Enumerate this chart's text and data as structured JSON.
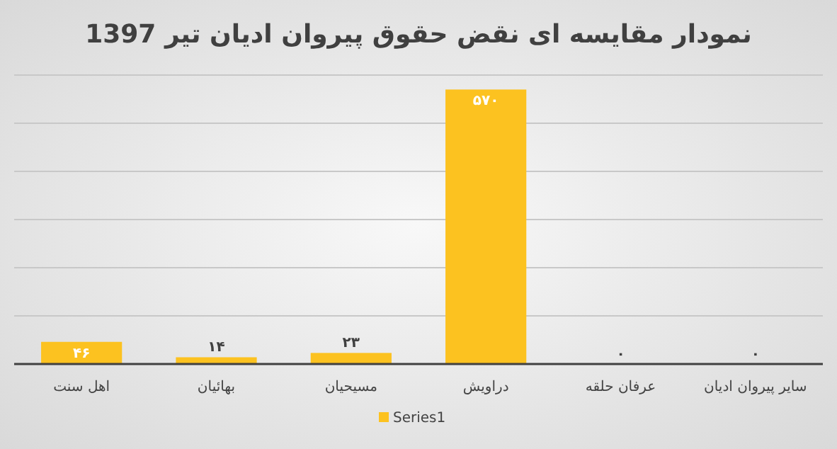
{
  "chart_data": {
    "type": "bar",
    "title": "نمودار مقایسه ای نقض حقوق پیروان ادیان تیر 1397",
    "categories": [
      "اهل سنت",
      "بهائیان",
      "مسیحیان",
      "دراویش",
      "عرفان حلقه",
      "سایر پیروان ادیان"
    ],
    "series": [
      {
        "name": "Series1",
        "color": "#fcc220",
        "values": [
          46,
          14,
          23,
          570,
          0,
          0
        ],
        "value_labels": [
          "۴۶",
          "۱۴",
          "۲۳",
          "۵۷۰",
          "۰",
          "۰"
        ]
      }
    ],
    "ylim": [
      0,
      600
    ],
    "yticks": [
      {
        "value": 0,
        "label": null
      },
      {
        "value": 100,
        "label": null
      },
      {
        "value": 200,
        "label": null
      },
      {
        "value": 300,
        "label": null
      },
      {
        "value": 400,
        "label": null
      },
      {
        "value": 500,
        "label": null
      },
      {
        "value": 600,
        "label": null
      }
    ],
    "tick_labels": "x",
    "grid": "y",
    "legend": "bottom"
  }
}
